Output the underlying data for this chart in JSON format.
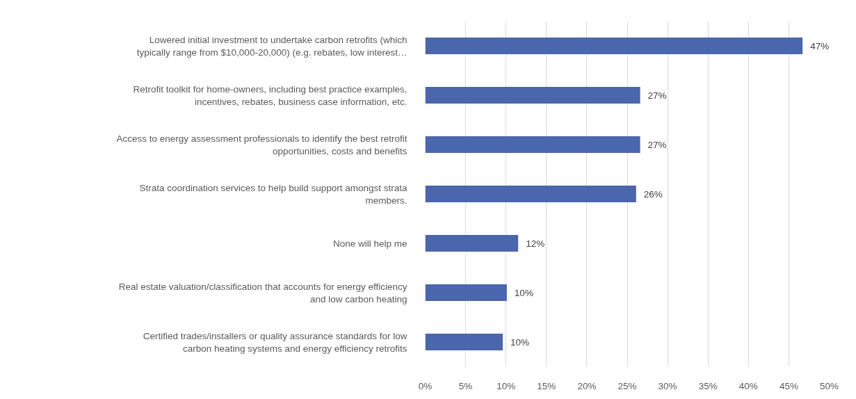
{
  "chart_data": {
    "type": "bar",
    "orientation": "horizontal",
    "categories": [
      "Lowered initial investment to undertake carbon retrofits (which typically range from $10,000-20,000) (e.g. rebates, low interest…",
      "Retrofit toolkit for home-owners, including best practice examples, incentives, rebates, business case information, etc.",
      "Access to energy assessment professionals to identify the best retrofit opportunities, costs and benefits",
      "Strata coordination services to help build support amongst strata members.",
      "None will help me",
      "Real estate valuation/classification that accounts for energy efficiency and low carbon heating",
      "Certified trades/installers or quality assurance standards for low carbon heating systems and energy efficiency retrofits"
    ],
    "values": [
      46.7,
      26.6,
      26.6,
      26.1,
      11.5,
      10.1,
      9.6
    ],
    "value_labels": [
      "47%",
      "27%",
      "27%",
      "26%",
      "12%",
      "10%",
      "10%"
    ],
    "color": "#4a66ac",
    "xlim": [
      0,
      50
    ],
    "xticks": [
      {
        "value": 0,
        "label": "0%"
      },
      {
        "value": 5,
        "label": "5%"
      },
      {
        "value": 10,
        "label": "10%"
      },
      {
        "value": 15,
        "label": "15%"
      },
      {
        "value": 20,
        "label": "20%"
      },
      {
        "value": 25,
        "label": "25%"
      },
      {
        "value": 30,
        "label": "30%"
      },
      {
        "value": 35,
        "label": "35%"
      },
      {
        "value": 40,
        "label": "40%"
      },
      {
        "value": 45,
        "label": "45%"
      },
      {
        "value": 50,
        "label": "50%"
      }
    ],
    "grid": "x"
  }
}
